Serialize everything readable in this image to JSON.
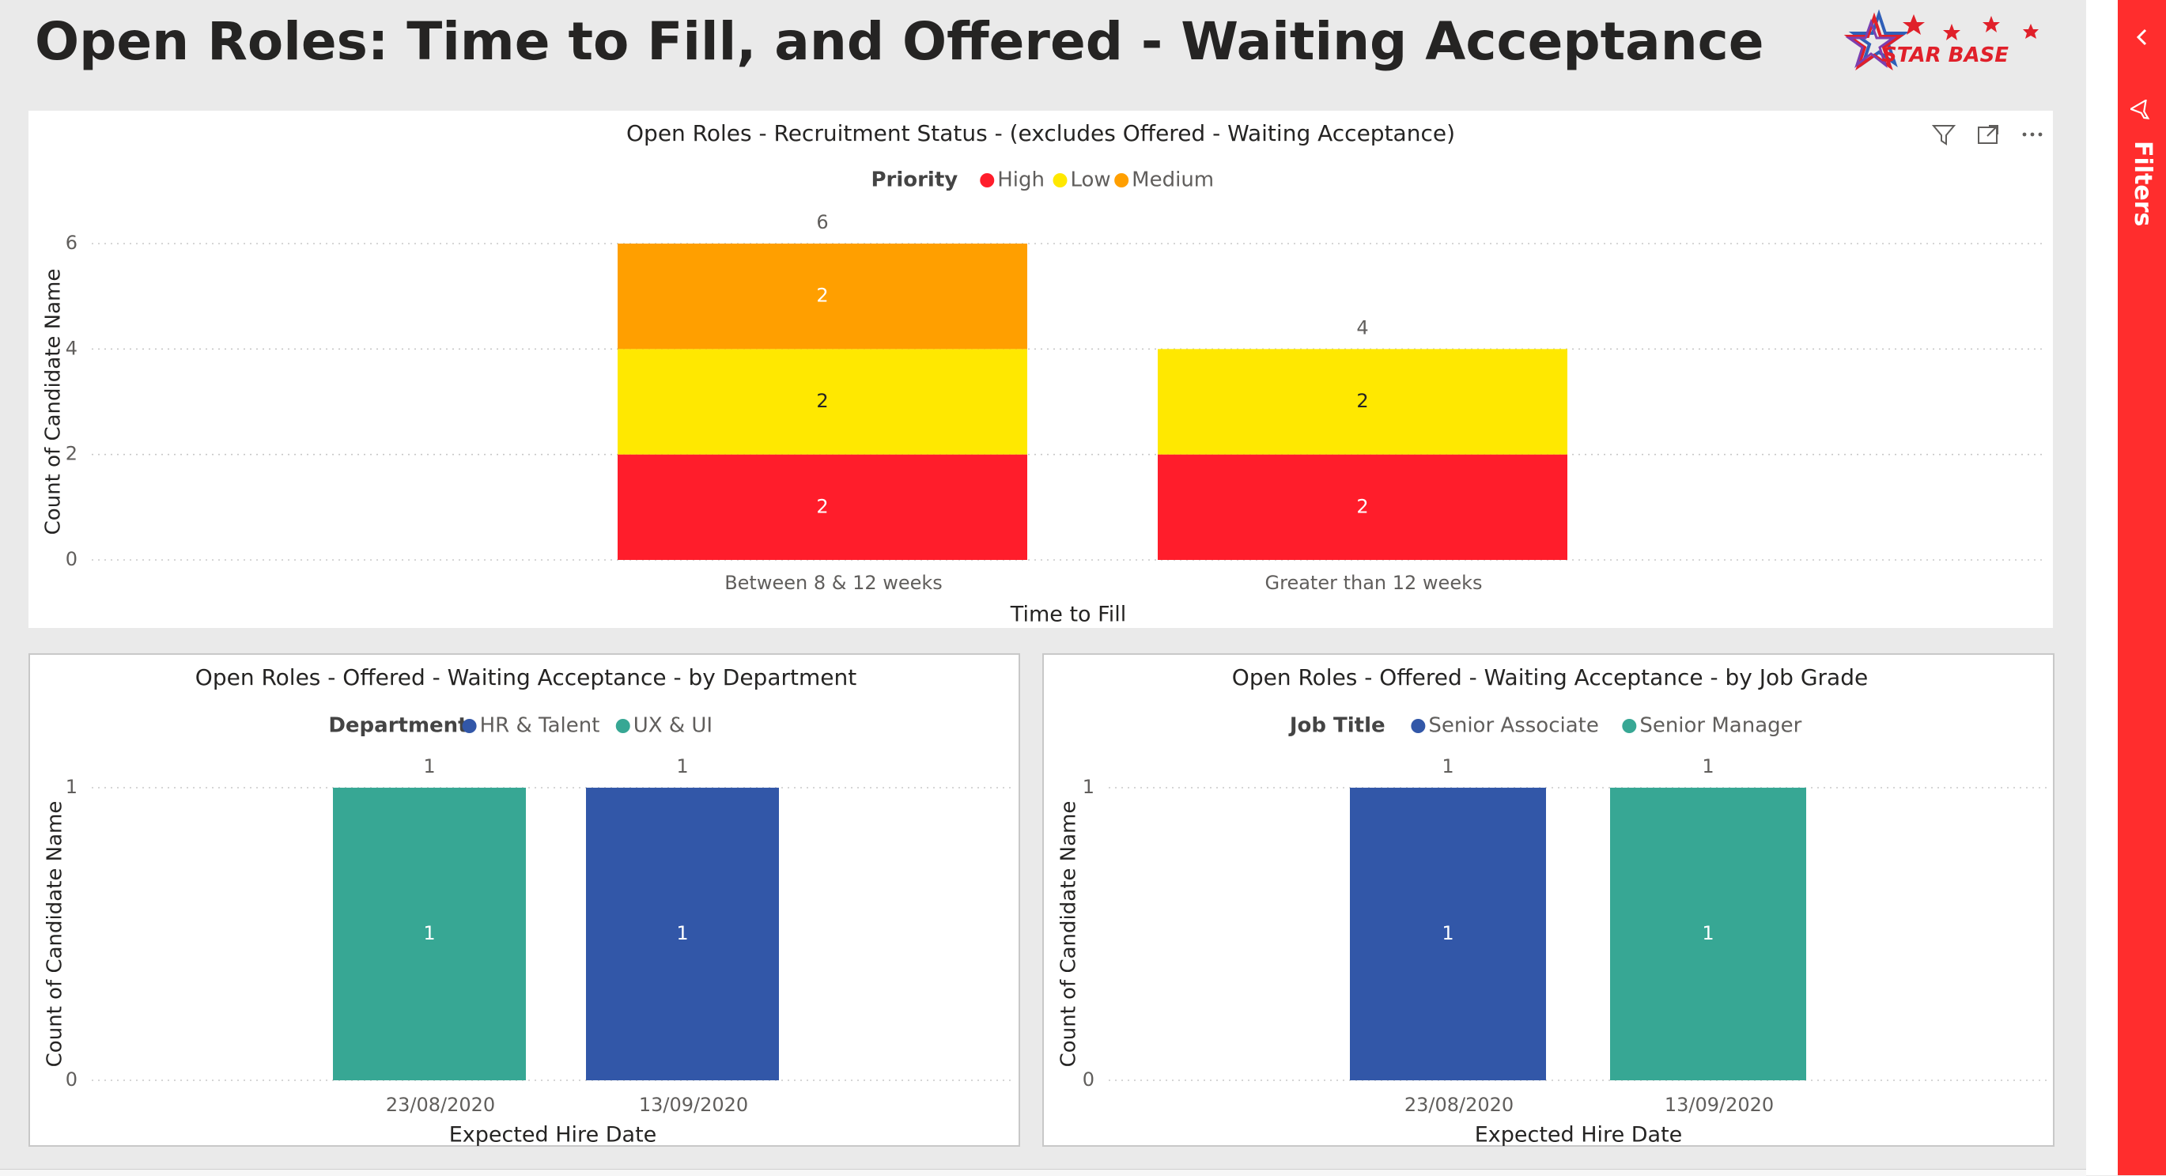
{
  "page": {
    "title": "Open Roles: Time to Fill, and Offered - Waiting Acceptance",
    "logo_text": "STAR BASE"
  },
  "filters_pane": {
    "label": "Filters"
  },
  "colors": {
    "high": "#ff1d2b",
    "low": "#ffe800",
    "medium": "#ff9f00",
    "navy": "#3257a8",
    "teal": "#37a794",
    "grid": "#c8c8c8",
    "text_dark": "#252423",
    "text_mid": "#605e5c"
  },
  "visuals": [
    {
      "id": "v1",
      "chart_data": {
        "type": "bar",
        "stacked": true,
        "title": "Open Roles - Recruitment Status - (excludes Offered - Waiting Acceptance)",
        "legend_title": "Priority",
        "legend_position": "top-center",
        "xlabel": "Time to Fill",
        "ylabel": "Count of Candidate Name",
        "categories": [
          "Between 8 & 12 weeks",
          "Greater than 12 weeks"
        ],
        "series": [
          {
            "name": "High",
            "color": "#ff1d2b",
            "label_color": "#ffffff",
            "values": [
              2,
              2
            ]
          },
          {
            "name": "Low",
            "color": "#ffe800",
            "label_color": "#252423",
            "values": [
              2,
              2
            ]
          },
          {
            "name": "Medium",
            "color": "#ff9f00",
            "label_color": "#ffffff",
            "values": [
              2,
              0
            ]
          }
        ],
        "totals": [
          6,
          4
        ],
        "yticks": [
          0,
          2,
          4,
          6
        ],
        "ylim": [
          0,
          6
        ],
        "grid": true
      }
    },
    {
      "id": "v2",
      "chart_data": {
        "type": "bar",
        "stacked": true,
        "title": "Open Roles - Offered - Waiting Acceptance - by Department",
        "legend_title": "Department",
        "legend_position": "top-center",
        "xlabel": "Expected Hire Date",
        "ylabel": "Count of Candidate Name",
        "categories": [
          "23/08/2020",
          "13/09/2020"
        ],
        "series": [
          {
            "name": "HR & Talent",
            "color": "#3257a8",
            "label_color": "#ffffff",
            "values": [
              0,
              1
            ]
          },
          {
            "name": "UX & UI",
            "color": "#37a794",
            "label_color": "#ffffff",
            "values": [
              1,
              0
            ]
          }
        ],
        "totals": [
          1,
          1
        ],
        "yticks": [
          0,
          1
        ],
        "ylim": [
          0,
          1
        ],
        "grid": true
      }
    },
    {
      "id": "v3",
      "chart_data": {
        "type": "bar",
        "stacked": true,
        "title": "Open Roles - Offered - Waiting Acceptance - by Job Grade",
        "legend_title": "Job Title",
        "legend_position": "top-center",
        "xlabel": "Expected Hire Date",
        "ylabel": "Count of Candidate Name",
        "categories": [
          "23/08/2020",
          "13/09/2020"
        ],
        "series": [
          {
            "name": "Senior Associate",
            "color": "#3257a8",
            "label_color": "#ffffff",
            "values": [
              1,
              0
            ]
          },
          {
            "name": "Senior Manager",
            "color": "#37a794",
            "label_color": "#ffffff",
            "values": [
              0,
              1
            ]
          }
        ],
        "totals": [
          1,
          1
        ],
        "yticks": [
          0,
          1
        ],
        "ylim": [
          0,
          1
        ],
        "grid": true
      }
    }
  ],
  "visual_header": {
    "icons": [
      "filter-icon",
      "focus-mode-icon",
      "more-options-icon"
    ]
  }
}
